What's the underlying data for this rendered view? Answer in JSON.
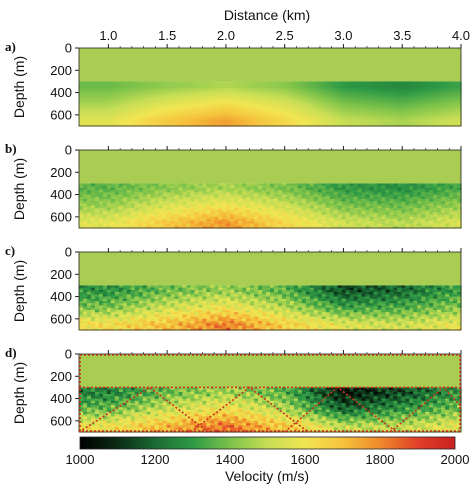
{
  "figure": {
    "x_axis_title": "Distance (km)",
    "y_axis_title": "Depth (m)",
    "colorbar_title": "Velocity (m/s)"
  },
  "colors": {
    "colormap": [
      "#000000",
      "#0b2b14",
      "#1a6a34",
      "#2e9a45",
      "#7cc24a",
      "#c7de55",
      "#f2e552",
      "#f5c33c",
      "#ef8a2b",
      "#e0412a",
      "#c9201f"
    ],
    "water_layer": "#a8cd52",
    "overlay_box": "#c8331f"
  },
  "chart_data": {
    "type": "heatmap",
    "x_label": "Distance (km)",
    "y_label": "Depth (m)",
    "x_ticks": [
      1.0,
      1.5,
      2.0,
      2.5,
      3.0,
      3.5,
      4.0
    ],
    "x_tick_labels": [
      "1.0",
      "1.5",
      "2.0",
      "2.5",
      "3.0",
      "3.5",
      "4.0"
    ],
    "xlim": [
      0.75,
      4.0
    ],
    "y_ticks": [
      0,
      200,
      400,
      600
    ],
    "y_tick_labels": [
      "0",
      "200",
      "400",
      "600"
    ],
    "ylim": [
      0,
      700
    ],
    "y_inverted": true,
    "water_bottom_depth_m": 300,
    "water_velocity_ms": 1480,
    "colorbar": {
      "label": "Velocity (m/s)",
      "range": [
        1000,
        2000
      ],
      "ticks": [
        1000,
        1200,
        1400,
        1600,
        1800,
        2000
      ],
      "tick_labels": [
        "1000",
        "1200",
        "1400",
        "1600",
        "1800",
        "2000"
      ]
    },
    "panels": [
      {
        "label": "a)",
        "description": "smooth",
        "velocity_at_depth_m_by_distance_km": {
          "depths_m": [
            350,
            500,
            650
          ],
          "x_km": [
            1.0,
            1.5,
            2.0,
            2.5,
            3.0,
            3.5,
            4.0
          ],
          "rows": [
            [
              1380,
              1430,
              1470,
              1420,
              1300,
              1260,
              1320
            ],
            [
              1460,
              1560,
              1620,
              1540,
              1400,
              1360,
              1420
            ],
            [
              1560,
              1680,
              1760,
              1640,
              1500,
              1460,
              1520
            ]
          ]
        }
      },
      {
        "label": "b)",
        "description": "moderate detail",
        "velocity_at_depth_m_by_distance_km": {
          "depths_m": [
            350,
            500,
            650
          ],
          "x_km": [
            1.0,
            1.5,
            2.0,
            2.5,
            3.0,
            3.5,
            4.0
          ],
          "rows": [
            [
              1360,
              1420,
              1460,
              1400,
              1300,
              1280,
              1340
            ],
            [
              1440,
              1540,
              1600,
              1520,
              1400,
              1380,
              1440
            ],
            [
              1560,
              1680,
              1780,
              1640,
              1520,
              1480,
              1540
            ]
          ]
        }
      },
      {
        "label": "c)",
        "description": "high detail",
        "velocity_at_depth_m_by_distance_km": {
          "depths_m": [
            350,
            500,
            650
          ],
          "x_km": [
            1.0,
            1.5,
            2.0,
            2.5,
            3.0,
            3.5,
            4.0
          ],
          "rows": [
            [
              1280,
              1380,
              1440,
              1360,
              1150,
              1200,
              1320
            ],
            [
              1400,
              1520,
              1600,
              1480,
              1320,
              1340,
              1420
            ],
            [
              1620,
              1700,
              1820,
              1660,
              1560,
              1520,
              1580
            ]
          ]
        }
      },
      {
        "label": "d)",
        "description": "high detail with overlay",
        "velocity_at_depth_m_by_distance_km": {
          "depths_m": [
            350,
            500,
            650
          ],
          "x_km": [
            1.0,
            1.5,
            2.0,
            2.5,
            3.0,
            3.5,
            4.0
          ],
          "rows": [
            [
              1250,
              1380,
              1460,
              1360,
              1050,
              1150,
              1300
            ],
            [
              1380,
              1520,
              1620,
              1480,
              1200,
              1300,
              1400
            ],
            [
              1600,
              1720,
              1840,
              1680,
              1500,
              1500,
              1580
            ]
          ]
        },
        "overlay": {
          "box": {
            "x_km": [
              0.75,
              4.0
            ],
            "depth_m": [
              0,
              700
            ]
          },
          "water_bottom_line_depth_m": 300,
          "wedges": [
            {
              "x_km": [
                0.75,
                1.35,
                1.85
              ],
              "depth_m": [
                700,
                300,
                700
              ]
            },
            {
              "x_km": [
                1.7,
                2.2,
                2.7
              ],
              "depth_m": [
                700,
                300,
                700
              ]
            },
            {
              "x_km": [
                2.5,
                2.95,
                3.45
              ],
              "depth_m": [
                700,
                300,
                700
              ]
            },
            {
              "x_km": [
                3.4,
                3.85,
                4.0
              ],
              "depth_m": [
                700,
                300,
                470
              ]
            }
          ]
        }
      }
    ]
  }
}
